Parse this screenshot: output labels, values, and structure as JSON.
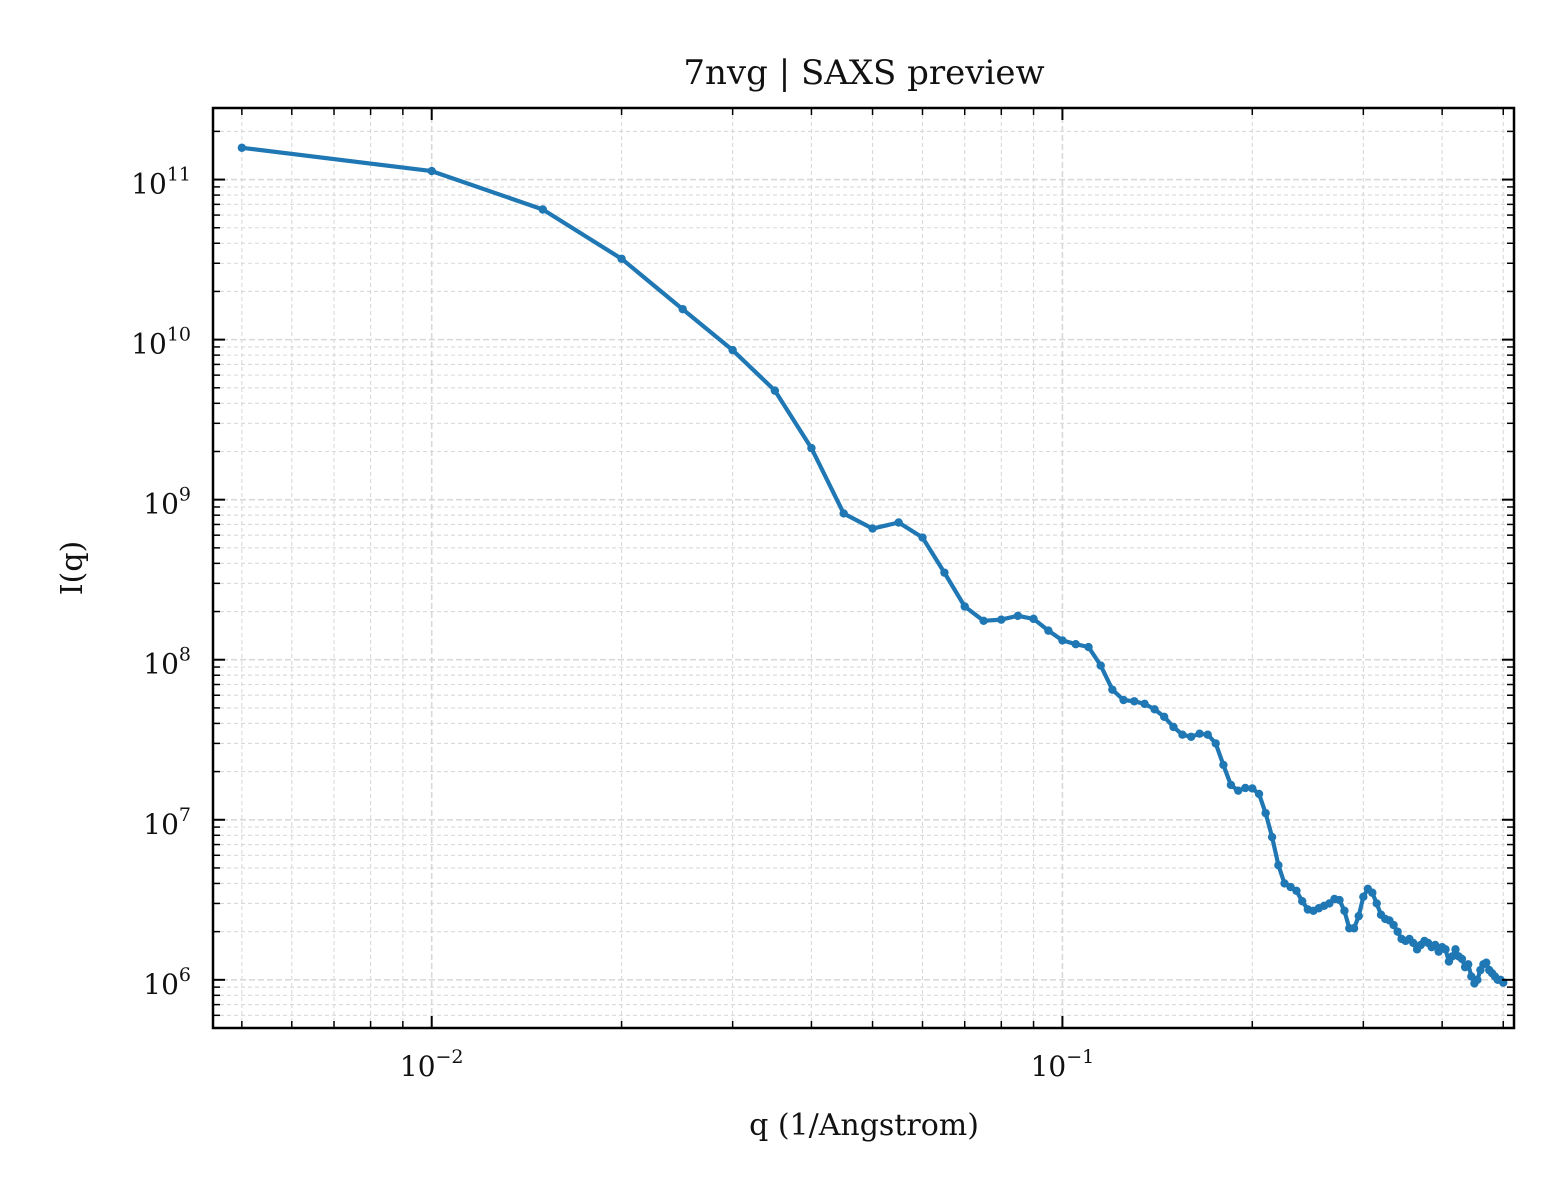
{
  "chart_data": {
    "type": "line",
    "title": "7nvg | SAXS preview",
    "xlabel": "q (1/Angstrom)",
    "ylabel": "I(q)",
    "xscale": "log",
    "yscale": "log",
    "xlim": [
      0.0045,
      0.52
    ],
    "ylim": [
      500000,
      280000000000
    ],
    "grid": true,
    "x_tick_labels": [
      {
        "value": 0.01,
        "base": "10",
        "exp": "−2"
      },
      {
        "value": 0.1,
        "base": "10",
        "exp": "−1"
      }
    ],
    "y_tick_labels": [
      {
        "value": 1000000,
        "base": "10",
        "exp": "6"
      },
      {
        "value": 10000000,
        "base": "10",
        "exp": "7"
      },
      {
        "value": 100000000,
        "base": "10",
        "exp": "8"
      },
      {
        "value": 1000000000,
        "base": "10",
        "exp": "9"
      },
      {
        "value": 10000000000,
        "base": "10",
        "exp": "10"
      },
      {
        "value": 100000000000,
        "base": "10",
        "exp": "11"
      }
    ],
    "colors": {
      "series": "#1f77b4",
      "grid": "#d9d9d9",
      "axes": "#000000"
    },
    "series": [
      {
        "x": [
          0.005,
          0.01,
          0.015,
          0.02,
          0.025,
          0.03,
          0.035,
          0.04,
          0.045,
          0.05,
          0.055,
          0.06,
          0.065,
          0.07,
          0.075,
          0.08,
          0.085,
          0.09,
          0.095,
          0.1,
          0.105,
          0.11,
          0.115,
          0.12,
          0.125,
          0.13,
          0.135,
          0.14,
          0.145,
          0.15,
          0.155,
          0.16,
          0.165,
          0.17,
          0.175,
          0.18,
          0.185,
          0.19,
          0.195,
          0.2,
          0.205,
          0.21,
          0.215,
          0.22,
          0.225,
          0.23,
          0.235,
          0.24,
          0.245,
          0.25,
          0.255,
          0.26,
          0.265,
          0.27,
          0.275,
          0.28,
          0.285,
          0.29,
          0.295,
          0.3,
          0.305,
          0.31,
          0.315,
          0.32,
          0.325,
          0.33,
          0.335,
          0.34,
          0.345,
          0.35,
          0.355,
          0.36,
          0.365,
          0.37,
          0.375,
          0.38,
          0.385,
          0.39,
          0.395,
          0.4,
          0.405,
          0.41,
          0.415,
          0.42,
          0.425,
          0.43,
          0.435,
          0.44,
          0.445,
          0.45,
          0.455,
          0.46,
          0.465,
          0.47,
          0.475,
          0.48,
          0.485,
          0.49,
          0.495,
          0.5
        ],
        "y": [
          158000000000,
          113000000000,
          65000000000,
          32000000000,
          15500000000,
          8600000000,
          4800000000,
          2100000000,
          820000000,
          660000000,
          720000000,
          580000000,
          350000000,
          215000000,
          175000000,
          178000000,
          188000000,
          180000000,
          152000000,
          132000000,
          125000000,
          120000000,
          92000000,
          65000000,
          56000000,
          55000000,
          53000000,
          49000000,
          44000000,
          38000000,
          34000000,
          33000000,
          34500000,
          34000000,
          30000000,
          22000000,
          16500000,
          15200000,
          15800000,
          15700000,
          14500000,
          11000000,
          7800000,
          5200000,
          4000000,
          3800000,
          3600000,
          3100000,
          2750000,
          2700000,
          2800000,
          2900000,
          3000000,
          3200000,
          3150000,
          2700000,
          2100000,
          2100000,
          2500000,
          3300000,
          3700000,
          3500000,
          3000000,
          2550000,
          2400000,
          2350000,
          2200000,
          2000000,
          1800000,
          1750000,
          1800000,
          1700000,
          1550000,
          1650000,
          1750000,
          1700000,
          1600000,
          1650000,
          1500000,
          1600000,
          1550000,
          1300000,
          1400000,
          1550000,
          1400000,
          1350000,
          1200000,
          1250000,
          1050000,
          950000,
          1000000,
          1150000,
          1250000,
          1280000,
          1150000,
          1100000,
          1050000,
          1000000,
          1000000,
          960000
        ]
      }
    ]
  }
}
